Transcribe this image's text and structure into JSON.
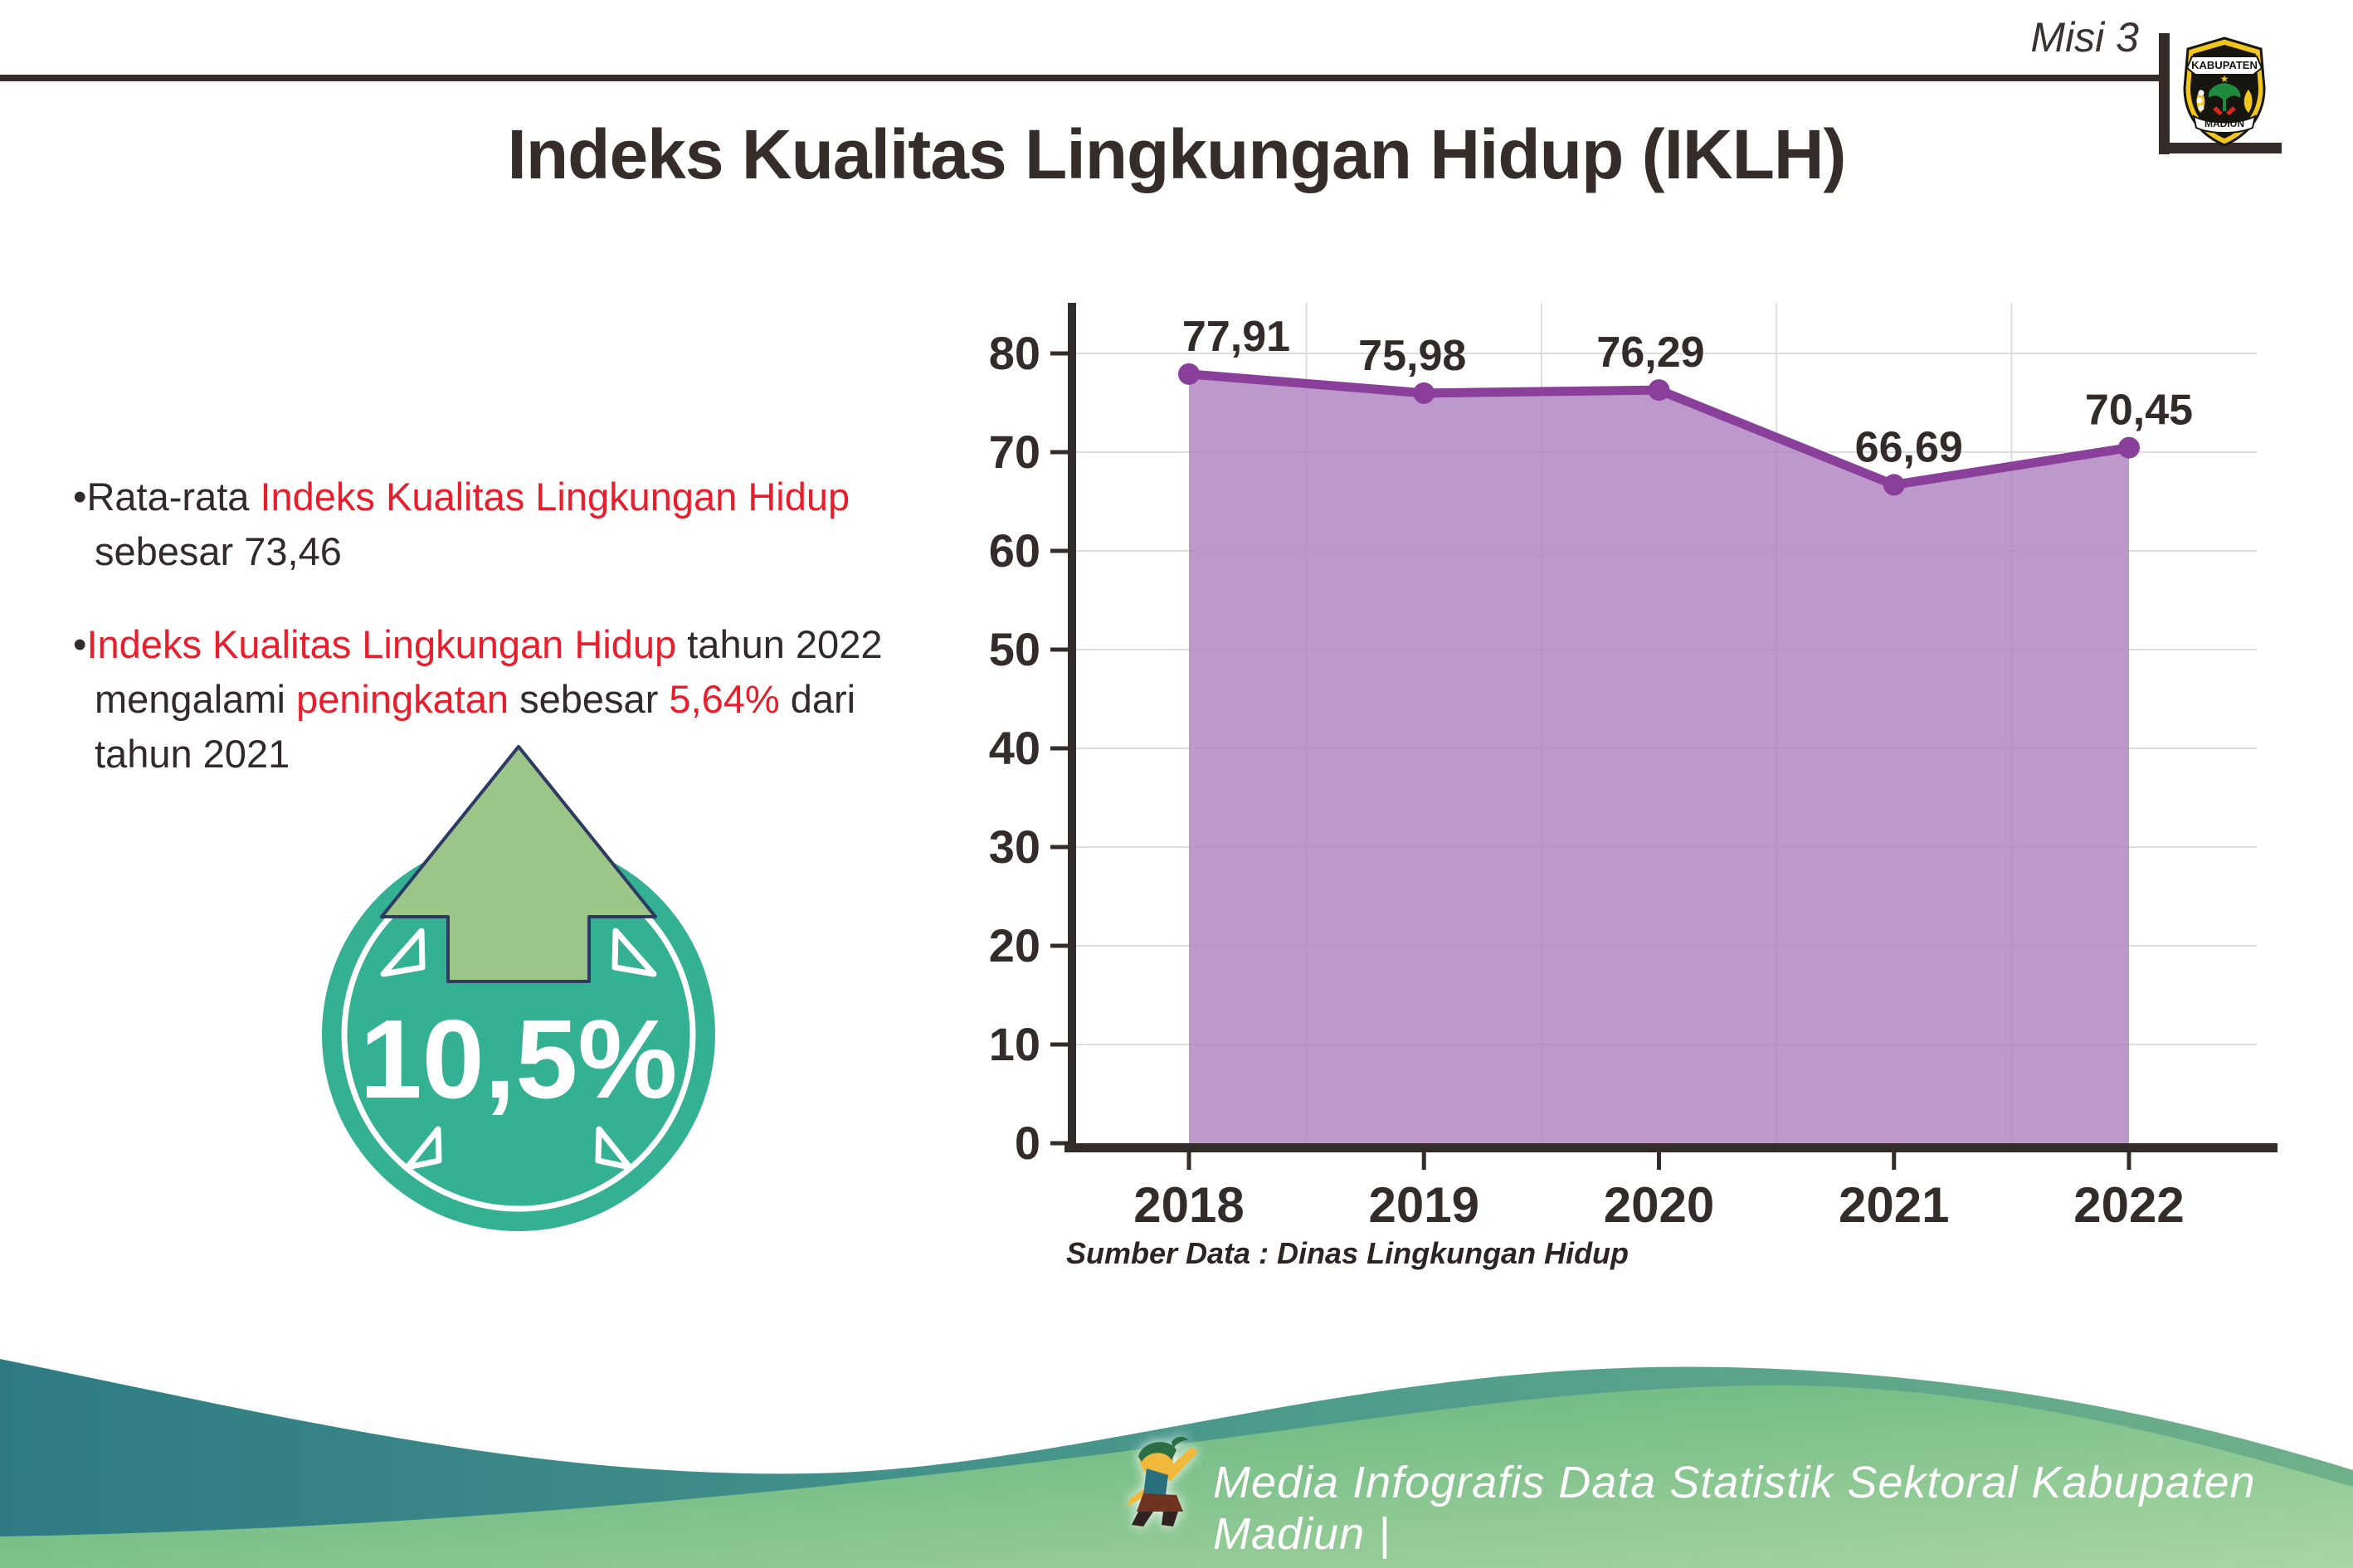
{
  "header": {
    "misi_label": "Misi 3",
    "logo_top": "KABUPATEN",
    "logo_bottom": "MADIUN"
  },
  "title": "Indeks Kualitas Lingkungan Hidup (IKLH)",
  "bullets": {
    "bullet_char": "•",
    "b1_pre": "Rata-rata ",
    "b1_red": "Indeks Kualitas Lingkungan Hidup",
    "b1_line2": "sebesar 73,46",
    "b2_red1": "Indeks Kualitas Lingkungan Hidup",
    "b2_black1": " tahun 2022",
    "b2_l2a": "mengalami ",
    "b2_l2b": "peningkatan",
    "b2_l2c": " sebesar ",
    "b2_l2d": "5,64%",
    "b2_l2e": " dari",
    "b2_line3": "tahun 2021"
  },
  "badge": {
    "value": "10,5%"
  },
  "chart_data": {
    "type": "area",
    "title": "",
    "xlabel": "",
    "ylabel": "",
    "categories": [
      "2018",
      "2019",
      "2020",
      "2021",
      "2022"
    ],
    "series": [
      {
        "name": "IKLH",
        "values": [
          77.91,
          75.98,
          76.29,
          66.69,
          70.45
        ]
      }
    ],
    "value_labels": [
      "77,91",
      "75,98",
      "76,29",
      "66,69",
      "70,45"
    ],
    "ylim": [
      0,
      85
    ],
    "yticks": [
      0,
      10,
      20,
      30,
      40,
      50,
      60,
      70,
      80
    ],
    "grid": "on",
    "legend": "none",
    "line_color": "#8a3f9b",
    "fill_color": "#b286c1",
    "marker_color": "#8a3f9b",
    "label_color": "#332a2a",
    "axis_color": "#342c2a",
    "grid_color": "#dcdcdc"
  },
  "chart_source": "Sumber Data : Dinas Lingkungan Hidup",
  "footer": {
    "caption": "Media Infografis Data Statistik Sektoral Kabupaten Madiun |"
  },
  "colors": {
    "accent_red": "#e81e2c",
    "text_dark": "#322a2a",
    "badge_teal": "#34b093",
    "arrow_green": "#9cc687",
    "wave_teal_dark": "#337e87",
    "wave_green_light": "#a6d4a0"
  }
}
